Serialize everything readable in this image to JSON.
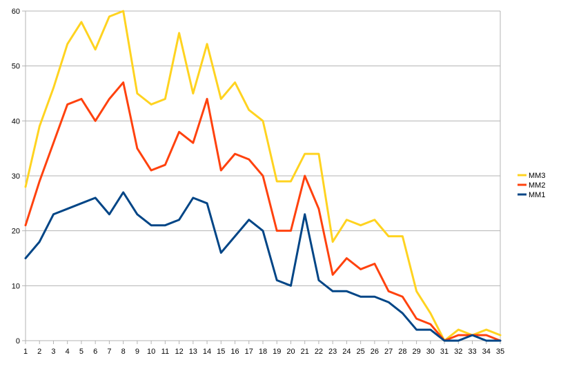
{
  "chart_data": {
    "type": "line",
    "title": "",
    "xlabel": "",
    "ylabel": "",
    "x": [
      1,
      2,
      3,
      4,
      5,
      6,
      7,
      8,
      9,
      10,
      11,
      12,
      13,
      14,
      15,
      16,
      17,
      18,
      19,
      20,
      21,
      22,
      23,
      24,
      25,
      26,
      27,
      28,
      29,
      30,
      31,
      32,
      33,
      34,
      35
    ],
    "ylim": [
      0,
      60
    ],
    "y_ticks": [
      0,
      10,
      20,
      30,
      40,
      50,
      60
    ],
    "grid": "horizontal",
    "legend_position": "right",
    "series": [
      {
        "name": "MM3",
        "color": "#FFD320",
        "values": [
          28,
          39,
          46,
          54,
          58,
          53,
          59,
          60,
          45,
          43,
          44,
          56,
          45,
          54,
          44,
          47,
          42,
          40,
          29,
          29,
          34,
          34,
          18,
          22,
          21,
          22,
          19,
          19,
          9,
          5,
          0,
          2,
          1,
          2,
          1
        ]
      },
      {
        "name": "MM2",
        "color": "#FF420E",
        "values": [
          21,
          29,
          36,
          43,
          44,
          40,
          44,
          47,
          35,
          31,
          32,
          38,
          36,
          44,
          31,
          34,
          33,
          30,
          20,
          20,
          30,
          24,
          12,
          15,
          13,
          14,
          9,
          8,
          4,
          3,
          0,
          1,
          1,
          1,
          0
        ]
      },
      {
        "name": "MM1",
        "color": "#004586",
        "values": [
          15,
          18,
          23,
          24,
          25,
          26,
          23,
          27,
          23,
          21,
          21,
          22,
          26,
          25,
          16,
          19,
          22,
          20,
          11,
          10,
          23,
          11,
          9,
          9,
          8,
          8,
          7,
          5,
          2,
          2,
          0,
          0,
          1,
          0,
          0
        ]
      }
    ]
  }
}
